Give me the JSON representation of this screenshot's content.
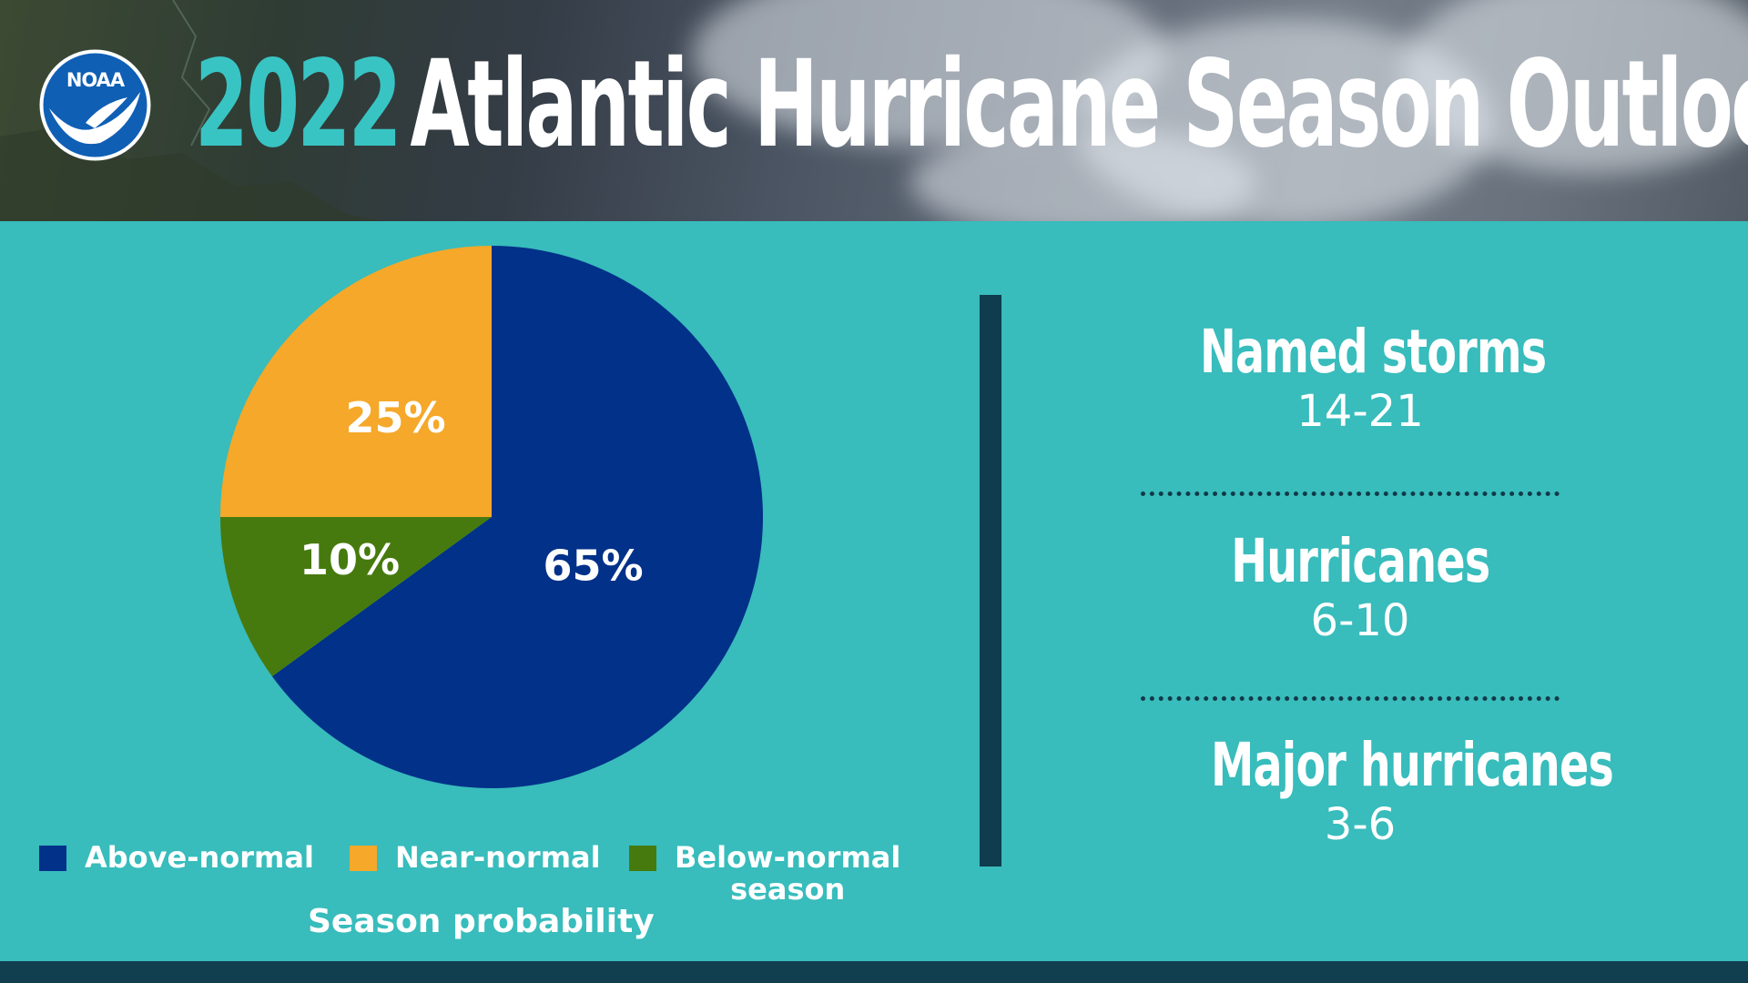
{
  "header": {
    "title_year": "2022",
    "title_text": "Atlantic Hurricane Season Outlook",
    "logo_text": "NOAA"
  },
  "chart_data": {
    "type": "pie",
    "title": "Season probability",
    "slices": [
      {
        "label": "Above-normal",
        "value": 65,
        "display": "65%",
        "color": "#023189"
      },
      {
        "label": "Below-normal season",
        "value": 10,
        "display": "10%",
        "color": "#477a0e"
      },
      {
        "label": "Near-normal",
        "value": 25,
        "display": "25%",
        "color": "#f5a829"
      }
    ],
    "legend": [
      {
        "label": "Above-normal",
        "color": "#023189"
      },
      {
        "label": "Near-normal",
        "color": "#f5a829"
      },
      {
        "label": "Below-normal",
        "label_line2": "season",
        "color": "#477a0e"
      }
    ],
    "legend_position": "bottom"
  },
  "stats": [
    {
      "label": "Named storms",
      "value": "14-21"
    },
    {
      "label": "Hurricanes",
      "value": "6-10"
    },
    {
      "label": "Major hurricanes",
      "value": "3-6"
    }
  ],
  "colors": {
    "background": "#38bcbc",
    "accent_teal": "#39c4c4",
    "divider": "#0f3c4e"
  }
}
